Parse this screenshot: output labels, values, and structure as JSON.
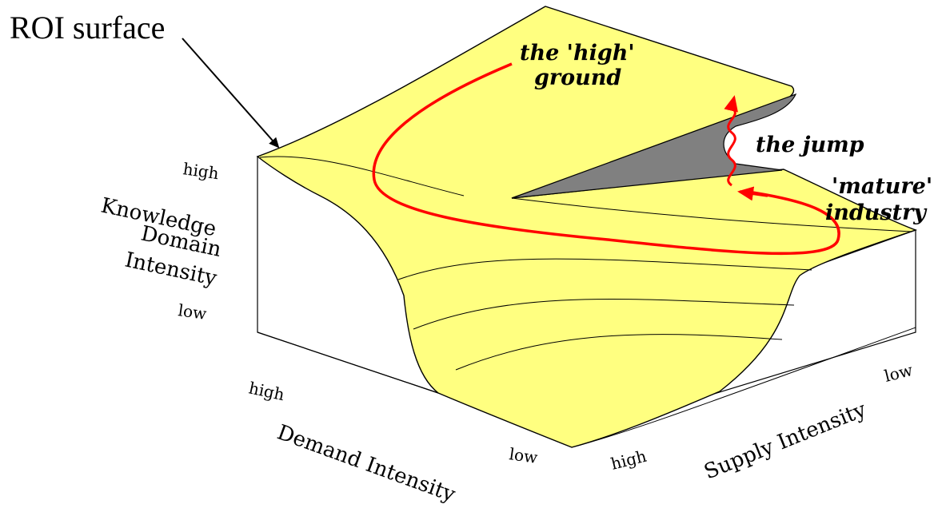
{
  "diagram": {
    "title_callout": "ROI surface",
    "annotations": {
      "high_ground_line1": "the 'high'",
      "high_ground_line2": "ground",
      "jump": "the jump",
      "mature_line1": "'mature'",
      "mature_line2": "industry"
    },
    "knowledge_axis": {
      "label_line1": "Knowledge",
      "label_line2": "Domain",
      "label_line3": "Intensity",
      "tick_high": "high",
      "tick_low": "low"
    },
    "demand_axis": {
      "label": "Demand Intensity",
      "tick_high": "high",
      "tick_low": "low"
    },
    "supply_axis": {
      "label": "Supply Intensity",
      "tick_high": "high",
      "tick_low": "low"
    },
    "colors": {
      "surface": "#ffff80",
      "fold_shadow": "#808080",
      "path": "#ff0000",
      "outline": "#000000"
    }
  }
}
